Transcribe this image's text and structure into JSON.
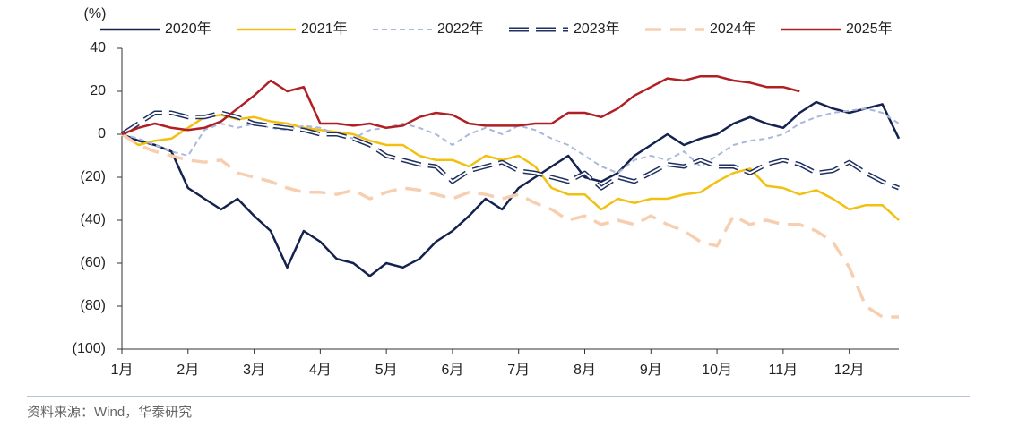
{
  "chart_data": {
    "type": "line",
    "y_label": "(%)",
    "source": "资料来源：Wind，华泰研究",
    "categories": [
      "1月",
      null,
      null,
      null,
      "2月",
      null,
      null,
      null,
      "3月",
      null,
      null,
      null,
      "4月",
      null,
      null,
      null,
      "5月",
      null,
      null,
      null,
      "6月",
      null,
      null,
      null,
      "7月",
      null,
      null,
      null,
      "8月",
      null,
      null,
      null,
      "9月",
      null,
      null,
      null,
      "10月",
      null,
      null,
      null,
      "11月",
      null,
      null,
      null,
      "12月",
      null,
      null,
      null
    ],
    "ylim": [
      -100,
      40
    ],
    "yticks": [
      {
        "value": -100,
        "label": "(100)"
      },
      {
        "value": -80,
        "label": "(80)"
      },
      {
        "value": -60,
        "label": "(60)"
      },
      {
        "value": -40,
        "label": "(40)"
      },
      {
        "value": -20,
        "label": "(20)"
      },
      0,
      20,
      40
    ],
    "series": [
      {
        "name": "2020年",
        "color": "#13224f",
        "style": "solid",
        "values": [
          0,
          -3,
          -5,
          -8,
          -25,
          -30,
          -35,
          -30,
          -38,
          -45,
          -62,
          -45,
          -50,
          -58,
          -60,
          -66,
          -60,
          -62,
          -58,
          -50,
          -45,
          -38,
          -30,
          -35,
          -25,
          -20,
          -15,
          -10,
          -20,
          -22,
          -18,
          -10,
          -5,
          0,
          -5,
          -2,
          0,
          5,
          8,
          5,
          3,
          10,
          15,
          12,
          10,
          12,
          14,
          -2
        ]
      },
      {
        "name": "2021年",
        "color": "#f2c010",
        "style": "solid",
        "values": [
          0,
          -5,
          -3,
          -2,
          3,
          8,
          9,
          7,
          8,
          6,
          5,
          3,
          2,
          1,
          0,
          -3,
          -5,
          -5,
          -10,
          -12,
          -12,
          -15,
          -10,
          -12,
          -10,
          -15,
          -25,
          -28,
          -28,
          -35,
          -30,
          -32,
          -30,
          -30,
          -28,
          -27,
          -22,
          -18,
          -16,
          -24,
          -25,
          -28,
          -26,
          -30,
          -35,
          -33,
          -33,
          -40
        ]
      },
      {
        "name": "2022年",
        "color": "#a9b8dc",
        "style": "dashed",
        "values": [
          0,
          -2,
          -5,
          -8,
          -10,
          2,
          5,
          3,
          5,
          3,
          2,
          4,
          3,
          0,
          -2,
          2,
          3,
          5,
          3,
          0,
          -5,
          0,
          3,
          0,
          4,
          2,
          -2,
          -5,
          -10,
          -15,
          -18,
          -12,
          -10,
          -12,
          -8,
          -15,
          -10,
          -5,
          -3,
          -2,
          0,
          5,
          8,
          10,
          11,
          12,
          10,
          5
        ]
      },
      {
        "name": "2023年",
        "color": "#1f2f5f",
        "style": "double",
        "values": [
          0,
          5,
          10,
          10,
          8,
          8,
          10,
          8,
          5,
          4,
          3,
          2,
          0,
          0,
          -2,
          -5,
          -10,
          -12,
          -14,
          -15,
          -22,
          -17,
          -15,
          -13,
          -17,
          -18,
          -20,
          -22,
          -18,
          -25,
          -20,
          -22,
          -18,
          -14,
          -15,
          -12,
          -15,
          -15,
          -18,
          -14,
          -12,
          -14,
          -18,
          -17,
          -13,
          -18,
          -22,
          -25
        ]
      },
      {
        "name": "2024年",
        "color": "#f7cfb0",
        "style": "longdash",
        "values": [
          0,
          -5,
          -8,
          -10,
          -12,
          -13,
          -12,
          -18,
          -20,
          -22,
          -25,
          -27,
          -27,
          -28,
          -26,
          -30,
          -27,
          -25,
          -26,
          -28,
          -30,
          -27,
          -28,
          -30,
          -28,
          -32,
          -35,
          -40,
          -38,
          -42,
          -40,
          -42,
          -38,
          -42,
          -45,
          -50,
          -52,
          -38,
          -42,
          -40,
          -42,
          -42,
          -45,
          -50,
          -62,
          -80,
          -85,
          -85
        ]
      },
      {
        "name": "2025年",
        "color": "#b01f24",
        "style": "solid",
        "values": [
          0,
          3,
          5,
          3,
          2,
          3,
          6,
          12,
          18,
          25,
          20,
          22,
          5,
          5,
          4,
          5,
          3,
          4,
          8,
          10,
          9,
          5,
          4,
          4,
          4,
          5,
          5,
          10,
          10,
          8,
          12,
          18,
          22,
          26,
          25,
          27,
          27,
          25,
          24,
          22,
          22,
          20,
          null,
          null,
          null,
          null,
          null,
          null
        ]
      }
    ]
  }
}
